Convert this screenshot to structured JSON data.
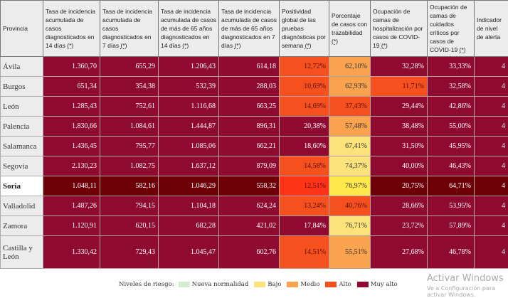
{
  "headers": [
    "Provincia",
    "Tasa de incidencia acumulada de casos diagnosticados en 14 días",
    "Tasa de incidencia acumulada de casos diagnosticados en 7 días",
    "Tasa de incidencia acumulada de casos de más de 65 años diagnosticados en 14 días",
    "Tasa de incidencia acumulada de casos de más de 65 años diagnosticados en 7 días",
    "Positividad global de las pruebas diagnósticas por semana",
    "Porcentaje de casos con trazabilidad",
    "Ocupación de camas de hospitalización por casos de COVID-19",
    "Ocupación de camas de cuidados críticos por casos de COVID-19",
    "Indicador de nivel de alerta"
  ],
  "note_marker": "(*)",
  "rows": [
    {
      "name": "Ávila",
      "values": [
        "1.360,70",
        "655,29",
        "1.206,43",
        "614,18",
        "12,72%",
        "62,10%",
        "32,28%",
        "33,33%",
        "4"
      ],
      "levels": [
        4,
        4,
        4,
        4,
        3,
        2,
        4,
        4,
        4
      ]
    },
    {
      "name": "Burgos",
      "values": [
        "651,34",
        "354,38",
        "532,39",
        "288,03",
        "10,69%",
        "62,93%",
        "11,71%",
        "32,58%",
        "4"
      ],
      "levels": [
        4,
        4,
        4,
        4,
        3,
        2,
        3,
        4,
        4
      ]
    },
    {
      "name": "León",
      "values": [
        "1.285,43",
        "752,61",
        "1.116,68",
        "663,25",
        "14,69%",
        "37,43%",
        "29,44%",
        "42,86%",
        "4"
      ],
      "levels": [
        4,
        4,
        4,
        4,
        3,
        3,
        4,
        4,
        4
      ]
    },
    {
      "name": "Palencia",
      "values": [
        "1.830,66",
        "1.084,61",
        "1.444,87",
        "896,31",
        "20,38%",
        "57,48%",
        "38,48%",
        "55,00%",
        "4"
      ],
      "levels": [
        4,
        4,
        4,
        4,
        4,
        2,
        4,
        4,
        4
      ]
    },
    {
      "name": "Salamanca",
      "values": [
        "1.436,45",
        "795,77",
        "1.085,06",
        "662,21",
        "18,60%",
        "67,41%",
        "31,50%",
        "45,95%",
        "4"
      ],
      "levels": [
        4,
        4,
        4,
        4,
        4,
        1,
        4,
        4,
        4
      ]
    },
    {
      "name": "Segovia",
      "values": [
        "2.130,23",
        "1.082,75",
        "1.637,12",
        "879,09",
        "14,58%",
        "74,37%",
        "40,00%",
        "46,43%",
        "4"
      ],
      "levels": [
        4,
        4,
        4,
        4,
        3,
        1,
        4,
        4,
        4
      ]
    },
    {
      "name": "Soria",
      "values": [
        "1.048,11",
        "582,16",
        "1.046,29",
        "558,32",
        "12,51%",
        "76,97%",
        "20,75%",
        "64,71%",
        "4"
      ],
      "levels": [
        4,
        4,
        4,
        4,
        3,
        1,
        4,
        4,
        4
      ],
      "highlighted": true
    },
    {
      "name": "Valladolid",
      "values": [
        "1.487,26",
        "794,15",
        "1.104,18",
        "624,24",
        "13,24%",
        "40,76%",
        "28,66%",
        "53,95%",
        "4"
      ],
      "levels": [
        4,
        4,
        4,
        4,
        3,
        3,
        4,
        4,
        4
      ]
    },
    {
      "name": "Zamora",
      "values": [
        "1.120,91",
        "620,15",
        "682,28",
        "421,02",
        "17,84%",
        "76,71%",
        "23,72%",
        "57,89%",
        "4"
      ],
      "levels": [
        4,
        4,
        4,
        4,
        4,
        1,
        4,
        4,
        4
      ]
    },
    {
      "name": "Castilla y León",
      "values": [
        "1.330,42",
        "729,43",
        "1.045,47",
        "602,76",
        "14,51%",
        "55,51%",
        "27,68%",
        "46,78%",
        "4"
      ],
      "levels": [
        4,
        4,
        4,
        4,
        3,
        2,
        4,
        4,
        4
      ]
    }
  ],
  "legend": {
    "title": "Niveles de riesgo:",
    "items": [
      {
        "label": "Nueva normalidad",
        "color": "#d6ecd2"
      },
      {
        "label": "Bajo",
        "color": "#fbe27a"
      },
      {
        "label": "Medio",
        "color": "#f9a34f"
      },
      {
        "label": "Alto",
        "color": "#f5501e"
      },
      {
        "label": "Muy alto",
        "color": "#8e0a30"
      }
    ]
  },
  "watermark": {
    "title": "Activar Windows",
    "subtitle": "Ve a Configuración para activar Windows."
  }
}
